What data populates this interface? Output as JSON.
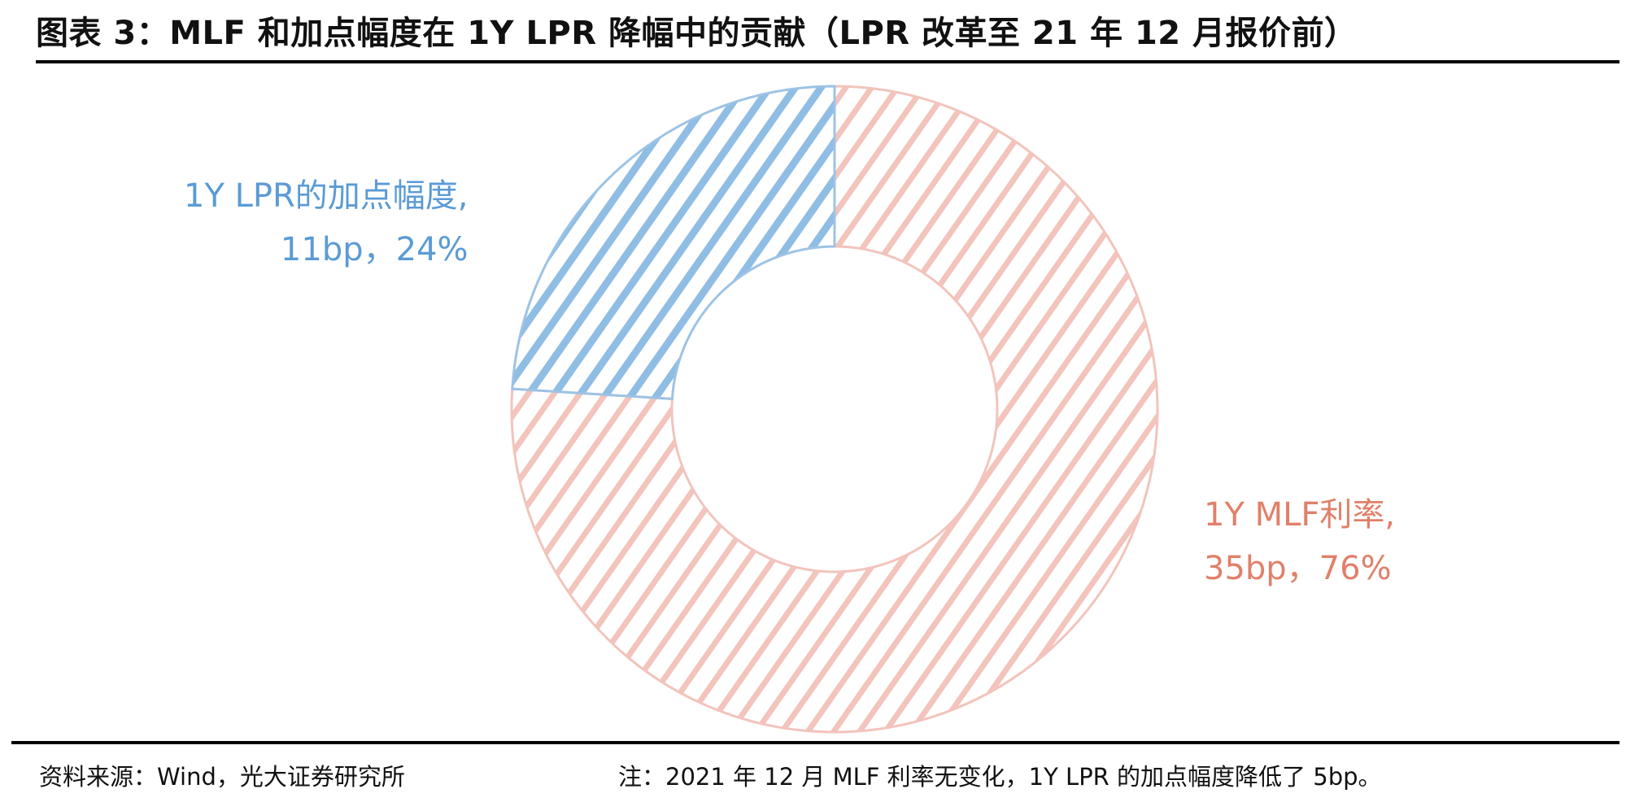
{
  "title": "图表 3：MLF 和加点幅度在 1Y LPR 降幅中的贡献（LPR 改革至 21 年 12 月报价前）",
  "footer": {
    "source": "资料来源：Wind，光大证券研究所",
    "note": "注：2021 年 12 月 MLF 利率无变化，1Y LPR 的加点幅度降低了 5bp。"
  },
  "chart_data": {
    "type": "pie",
    "subtype": "donut",
    "title": "MLF 和加点幅度在 1Y LPR 降幅中的贡献",
    "slices": [
      {
        "name": "1Y MLF利率",
        "value_bp": 35,
        "percent": 76,
        "label_line1": "1Y MLF利率,",
        "label_line2": "35bp，76%",
        "color": "#f2c4bc",
        "text_color": "#e0806a"
      },
      {
        "name": "1Y LPR的加点幅度",
        "value_bp": 11,
        "percent": 24,
        "label_line1": "1Y LPR的加点幅度,",
        "label_line2": "11bp，24%",
        "color": "#9dc3e6",
        "text_color": "#5b9bd5"
      }
    ],
    "legend": "none"
  }
}
